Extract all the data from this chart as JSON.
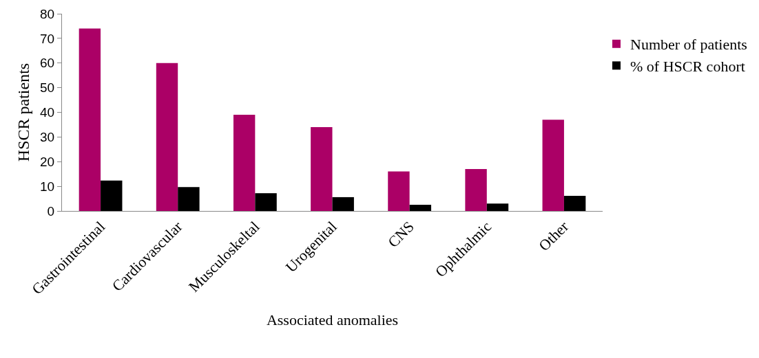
{
  "chart_data": {
    "type": "bar",
    "xlabel": "Associated anomalies",
    "ylabel": "HSCR patients",
    "categories": [
      "Gastrointestinal",
      "Cardiovascular",
      "Musculoskeltal",
      "Urogenital",
      "CNS",
      "Ophthalmic",
      "Other"
    ],
    "series": [
      {
        "name": "Number of patients",
        "color": "#ab0066",
        "values": [
          74,
          60,
          39,
          34,
          16,
          17,
          37
        ]
      },
      {
        "name": "% of HSCR cohort",
        "color": "#000000",
        "values": [
          12.3,
          9.7,
          7.2,
          5.6,
          2.5,
          3,
          6.1
        ]
      }
    ],
    "ylim": [
      0,
      80
    ],
    "yticks": [
      0,
      10,
      20,
      30,
      40,
      50,
      60,
      70,
      80
    ],
    "grid": false,
    "legend": "top right"
  }
}
